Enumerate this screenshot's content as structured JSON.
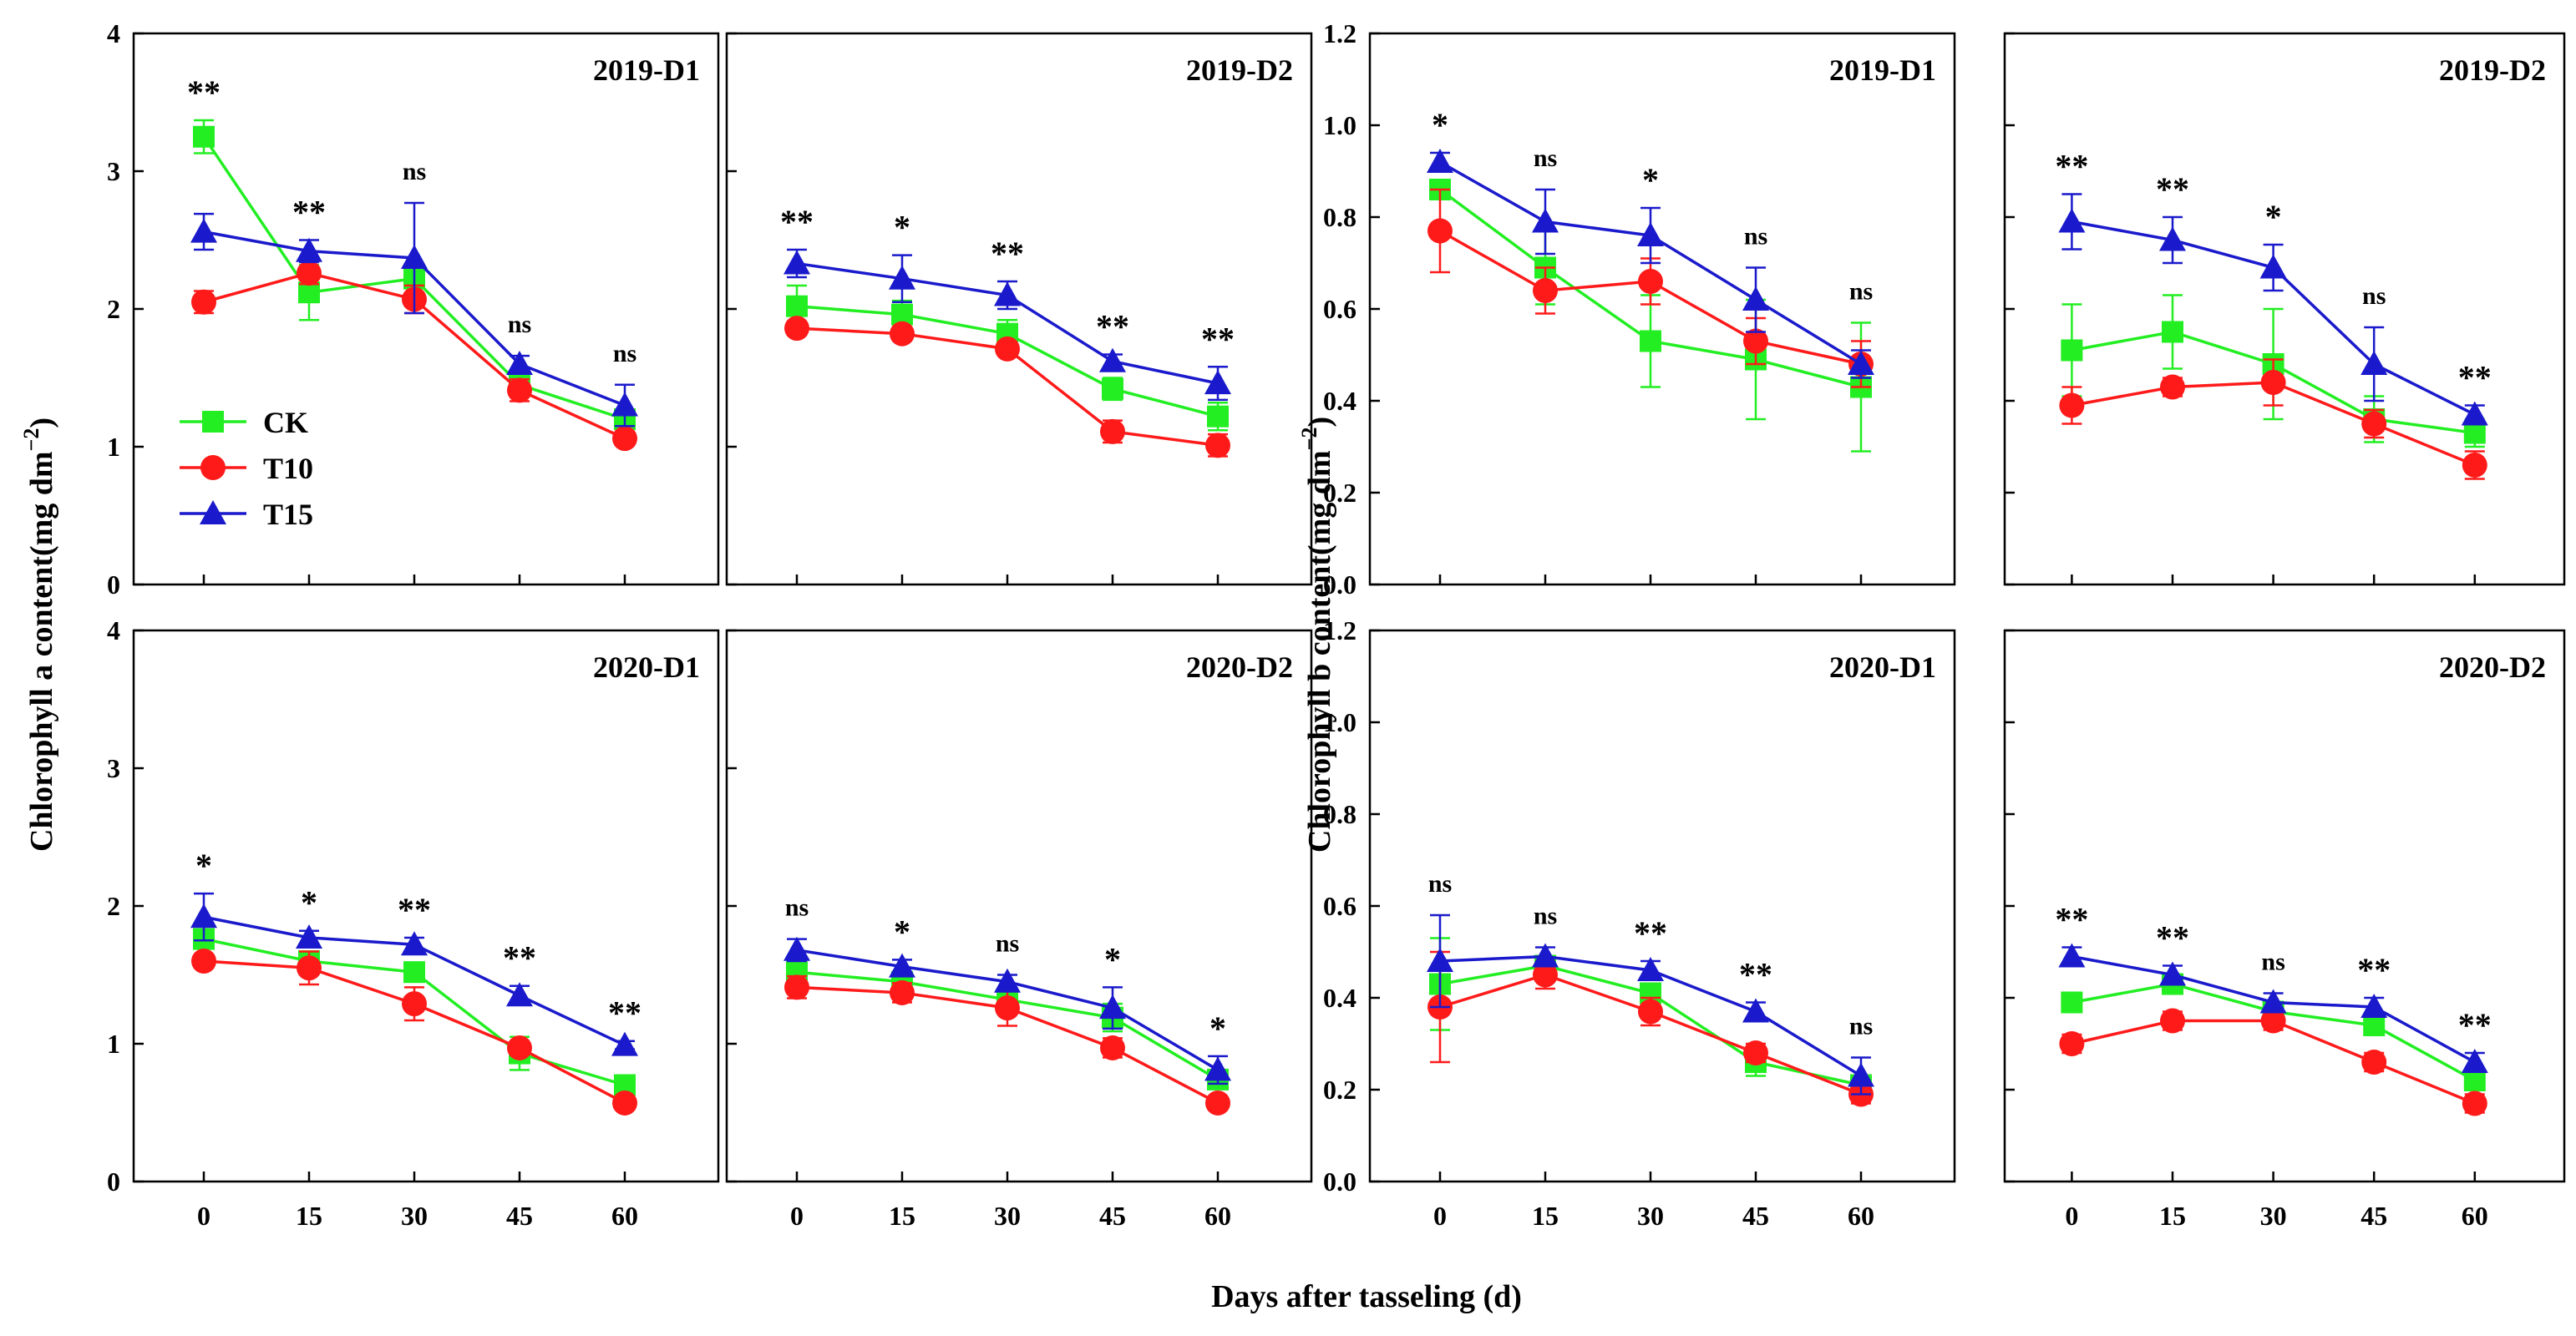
{
  "figure": {
    "ylabel_a": "Chlorophyll a content(mg dm",
    "ylabel_b": "Chlorophyll b content(mg dm",
    "ylabel_unit_exp": "−2",
    "ylabel_close": ")",
    "xlabel": "Days after tasseling (d)"
  },
  "legend": {
    "placement": "inside top-left panel, center-left",
    "items": [
      "CK",
      "T10",
      "T15"
    ]
  },
  "colors": {
    "CK": "#22ee22",
    "T10": "#ff1a1a",
    "T15": "#1a1acc",
    "axis": "#000000"
  },
  "chart_data": [
    {
      "type": "line",
      "title": "2019-D1",
      "measure": "Chlorophyll a",
      "x": [
        0,
        15,
        30,
        45,
        60
      ],
      "xticks": [
        "0",
        "15",
        "30",
        "45",
        "60"
      ],
      "ylim": [
        0,
        4
      ],
      "yticks": [
        "0",
        "1",
        "2",
        "3",
        "4"
      ],
      "series": [
        {
          "name": "CK",
          "values": [
            3.25,
            2.12,
            2.22,
            1.45,
            1.2
          ],
          "errors": [
            0.12,
            0.2,
            0.1,
            0.08,
            0.05
          ]
        },
        {
          "name": "T10",
          "values": [
            2.05,
            2.26,
            2.07,
            1.41,
            1.06
          ],
          "errors": [
            0.08,
            0.08,
            0.1,
            0.08,
            0.05
          ]
        },
        {
          "name": "T15",
          "values": [
            2.56,
            2.42,
            2.37,
            1.6,
            1.3
          ],
          "errors": [
            0.13,
            0.08,
            0.4,
            0.06,
            0.15
          ]
        }
      ],
      "significance": [
        "**",
        "**",
        "ns",
        "ns",
        "ns"
      ]
    },
    {
      "type": "line",
      "title": "2019-D2",
      "measure": "Chlorophyll a",
      "x": [
        0,
        15,
        30,
        45,
        60
      ],
      "xticks": [
        "0",
        "15",
        "30",
        "45",
        "60"
      ],
      "ylim": [
        0,
        4
      ],
      "yticks": [],
      "series": [
        {
          "name": "CK",
          "values": [
            2.02,
            1.96,
            1.82,
            1.42,
            1.22
          ],
          "errors": [
            0.15,
            0.1,
            0.1,
            0.08,
            0.1
          ]
        },
        {
          "name": "T10",
          "values": [
            1.86,
            1.82,
            1.71,
            1.11,
            1.01
          ],
          "errors": [
            0.05,
            0.05,
            0.05,
            0.08,
            0.08
          ]
        },
        {
          "name": "T15",
          "values": [
            2.33,
            2.22,
            2.1,
            1.62,
            1.46
          ],
          "errors": [
            0.1,
            0.17,
            0.1,
            0.05,
            0.12
          ]
        }
      ],
      "significance": [
        "**",
        "*",
        "**",
        "**",
        "**"
      ]
    },
    {
      "type": "line",
      "title": "2019-D1",
      "measure": "Chlorophyll b",
      "x": [
        0,
        15,
        30,
        45,
        60
      ],
      "xticks": [
        "0",
        "15",
        "30",
        "45",
        "60"
      ],
      "ylim": [
        0,
        1.2
      ],
      "yticks": [
        "0.0",
        "0.2",
        "0.4",
        "0.6",
        "0.8",
        "1.0",
        "1.2"
      ],
      "series": [
        {
          "name": "CK",
          "values": [
            0.86,
            0.69,
            0.53,
            0.49,
            0.43
          ],
          "errors": [
            0.02,
            0.08,
            0.1,
            0.13,
            0.14
          ]
        },
        {
          "name": "T10",
          "values": [
            0.77,
            0.64,
            0.66,
            0.53,
            0.48
          ],
          "errors": [
            0.09,
            0.05,
            0.05,
            0.05,
            0.05
          ]
        },
        {
          "name": "T15",
          "values": [
            0.92,
            0.79,
            0.76,
            0.62,
            0.48
          ],
          "errors": [
            0.02,
            0.07,
            0.06,
            0.07,
            0.03
          ]
        }
      ],
      "significance": [
        "*",
        "ns",
        "*",
        "ns",
        "ns"
      ]
    },
    {
      "type": "line",
      "title": "2019-D2",
      "measure": "Chlorophyll b",
      "x": [
        0,
        15,
        30,
        45,
        60
      ],
      "xticks": [
        "0",
        "15",
        "30",
        "45",
        "60"
      ],
      "ylim": [
        0,
        1.2
      ],
      "yticks": [],
      "series": [
        {
          "name": "CK",
          "values": [
            0.51,
            0.55,
            0.48,
            0.36,
            0.33
          ],
          "errors": [
            0.1,
            0.08,
            0.12,
            0.05,
            0.03
          ]
        },
        {
          "name": "T10",
          "values": [
            0.39,
            0.43,
            0.44,
            0.35,
            0.26
          ],
          "errors": [
            0.04,
            0.02,
            0.05,
            0.03,
            0.03
          ]
        },
        {
          "name": "T15",
          "values": [
            0.79,
            0.75,
            0.69,
            0.48,
            0.37
          ],
          "errors": [
            0.06,
            0.05,
            0.05,
            0.08,
            0.02
          ]
        }
      ],
      "significance": [
        "**",
        "**",
        "*",
        "ns",
        "**"
      ]
    },
    {
      "type": "line",
      "title": "2020-D1",
      "measure": "Chlorophyll a",
      "x": [
        0,
        15,
        30,
        45,
        60
      ],
      "xticks": [
        "0",
        "15",
        "30",
        "45",
        "60"
      ],
      "ylim": [
        0,
        4
      ],
      "yticks": [
        "0",
        "1",
        "2",
        "3",
        "4"
      ],
      "series": [
        {
          "name": "CK",
          "values": [
            1.76,
            1.6,
            1.52,
            0.93,
            0.7
          ],
          "errors": [
            0.07,
            0.07,
            0.07,
            0.12,
            0.05
          ]
        },
        {
          "name": "T10",
          "values": [
            1.6,
            1.55,
            1.29,
            0.97,
            0.57
          ],
          "errors": [
            0.05,
            0.12,
            0.12,
            0.05,
            0.04
          ]
        },
        {
          "name": "T15",
          "values": [
            1.92,
            1.77,
            1.72,
            1.35,
            0.99
          ],
          "errors": [
            0.17,
            0.05,
            0.05,
            0.07,
            0.03
          ]
        }
      ],
      "significance": [
        "*",
        "*",
        "**",
        "**",
        "**"
      ]
    },
    {
      "type": "line",
      "title": "2020-D2",
      "measure": "Chlorophyll a",
      "x": [
        0,
        15,
        30,
        45,
        60
      ],
      "xticks": [
        "0",
        "15",
        "30",
        "45",
        "60"
      ],
      "ylim": [
        0,
        4
      ],
      "yticks": [],
      "series": [
        {
          "name": "CK",
          "values": [
            1.52,
            1.45,
            1.32,
            1.19,
            0.74
          ],
          "errors": [
            0.12,
            0.05,
            0.07,
            0.1,
            0.04
          ]
        },
        {
          "name": "T10",
          "values": [
            1.41,
            1.37,
            1.26,
            0.97,
            0.57
          ],
          "errors": [
            0.08,
            0.07,
            0.13,
            0.07,
            0.05
          ]
        },
        {
          "name": "T15",
          "values": [
            1.68,
            1.56,
            1.45,
            1.26,
            0.81
          ],
          "errors": [
            0.08,
            0.05,
            0.05,
            0.15,
            0.1
          ]
        }
      ],
      "significance": [
        "ns",
        "*",
        "ns",
        "*",
        "*"
      ]
    },
    {
      "type": "line",
      "title": "2020-D1",
      "measure": "Chlorophyll b",
      "x": [
        0,
        15,
        30,
        45,
        60
      ],
      "xticks": [
        "0",
        "15",
        "30",
        "45",
        "60"
      ],
      "ylim": [
        0,
        1.2
      ],
      "yticks": [
        "0.0",
        "0.2",
        "0.4",
        "0.6",
        "0.8",
        "1.0",
        "1.2"
      ],
      "series": [
        {
          "name": "CK",
          "values": [
            0.43,
            0.47,
            0.41,
            0.26,
            0.21
          ],
          "errors": [
            0.1,
            0.02,
            0.02,
            0.03,
            0.02
          ]
        },
        {
          "name": "T10",
          "values": [
            0.38,
            0.45,
            0.37,
            0.28,
            0.19
          ],
          "errors": [
            0.12,
            0.03,
            0.03,
            0.02,
            0.02
          ]
        },
        {
          "name": "T15",
          "values": [
            0.48,
            0.49,
            0.46,
            0.37,
            0.23
          ],
          "errors": [
            0.1,
            0.02,
            0.02,
            0.02,
            0.04
          ]
        }
      ],
      "significance": [
        "ns",
        "ns",
        "**",
        "**",
        "ns"
      ]
    },
    {
      "type": "line",
      "title": "2020-D2",
      "measure": "Chlorophyll b",
      "x": [
        0,
        15,
        30,
        45,
        60
      ],
      "xticks": [
        "0",
        "15",
        "30",
        "45",
        "60"
      ],
      "ylim": [
        0,
        1.2
      ],
      "yticks": [],
      "series": [
        {
          "name": "CK",
          "values": [
            0.39,
            0.43,
            0.37,
            0.34,
            0.22
          ],
          "errors": [
            0.02,
            0.02,
            0.02,
            0.02,
            0.02
          ]
        },
        {
          "name": "T10",
          "values": [
            0.3,
            0.35,
            0.35,
            0.26,
            0.17
          ],
          "errors": [
            0.02,
            0.02,
            0.02,
            0.02,
            0.02
          ]
        },
        {
          "name": "T15",
          "values": [
            0.49,
            0.45,
            0.39,
            0.38,
            0.26
          ],
          "errors": [
            0.02,
            0.02,
            0.02,
            0.02,
            0.02
          ]
        }
      ],
      "significance": [
        "**",
        "**",
        "ns",
        "**",
        "**"
      ]
    }
  ]
}
